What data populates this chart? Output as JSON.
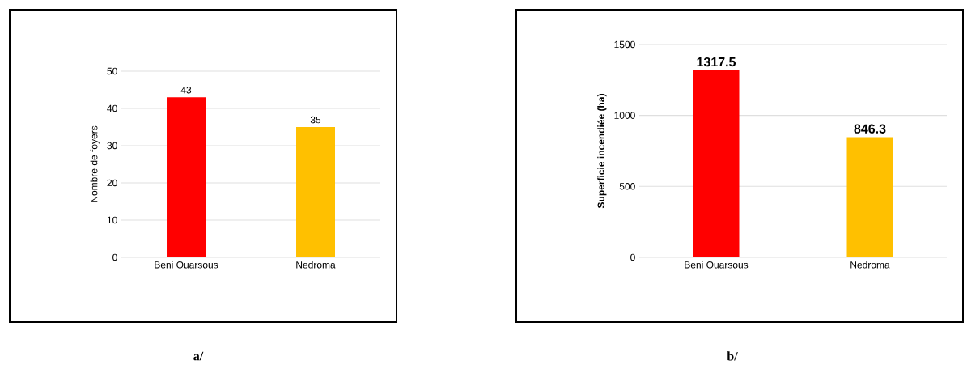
{
  "chart_data": [
    {
      "type": "bar",
      "ylabel": "Nombre de foyers",
      "categories": [
        "Beni Ouarsous",
        "Nedroma"
      ],
      "values": [
        43,
        35
      ],
      "colors": [
        "#ff0000",
        "#ffc000"
      ],
      "ylim": [
        0,
        50
      ],
      "yticks": [
        0,
        10,
        20,
        30,
        40,
        50
      ],
      "grid": "y",
      "data_labels": true,
      "annotations": [
        "a/"
      ]
    },
    {
      "type": "bar",
      "ylabel": "Superficie incendiée (ha)",
      "categories": [
        "Beni Ouarsous",
        "Nedroma"
      ],
      "values": [
        1317.5,
        846.3
      ],
      "colors": [
        "#ff0000",
        "#ffc000"
      ],
      "ylim": [
        0,
        1500
      ],
      "yticks": [
        0,
        500,
        1000,
        1500
      ],
      "grid": "y",
      "data_labels": true,
      "annotations": [
        "b/"
      ]
    }
  ]
}
